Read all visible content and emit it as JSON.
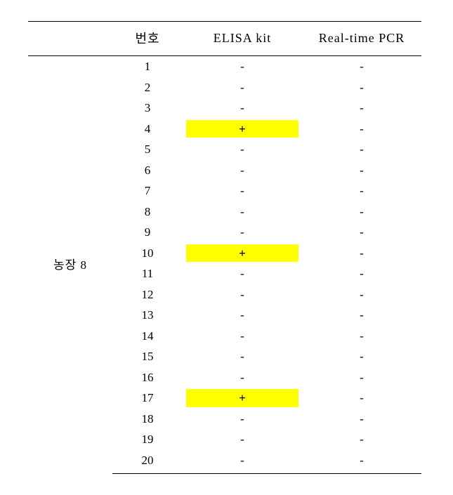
{
  "table": {
    "background_color": "#ffffff",
    "highlight_color": "#ffff00",
    "border_color": "#000000",
    "font_family": "Times New Roman / Malgun Gothic",
    "header_fontsize": 18,
    "cell_fontsize": 17,
    "columns": [
      "",
      "번호",
      "ELISA kit",
      "Real-time PCR"
    ],
    "row_label": "농장 8",
    "rows": [
      {
        "num": "1",
        "elisa": "-",
        "pcr": "-",
        "hl": false
      },
      {
        "num": "2",
        "elisa": "-",
        "pcr": "-",
        "hl": false
      },
      {
        "num": "3",
        "elisa": "-",
        "pcr": "-",
        "hl": false
      },
      {
        "num": "4",
        "elisa": "+",
        "pcr": "-",
        "hl": true
      },
      {
        "num": "5",
        "elisa": "-",
        "pcr": "-",
        "hl": false
      },
      {
        "num": "6",
        "elisa": "-",
        "pcr": "-",
        "hl": false
      },
      {
        "num": "7",
        "elisa": "-",
        "pcr": "-",
        "hl": false
      },
      {
        "num": "8",
        "elisa": "-",
        "pcr": "-",
        "hl": false
      },
      {
        "num": "9",
        "elisa": "-",
        "pcr": "-",
        "hl": false
      },
      {
        "num": "10",
        "elisa": "+",
        "pcr": "-",
        "hl": true
      },
      {
        "num": "11",
        "elisa": "-",
        "pcr": "-",
        "hl": false
      },
      {
        "num": "12",
        "elisa": "-",
        "pcr": "-",
        "hl": false
      },
      {
        "num": "13",
        "elisa": "-",
        "pcr": "-",
        "hl": false
      },
      {
        "num": "14",
        "elisa": "-",
        "pcr": "-",
        "hl": false
      },
      {
        "num": "15",
        "elisa": "-",
        "pcr": "-",
        "hl": false
      },
      {
        "num": "16",
        "elisa": "-",
        "pcr": "-",
        "hl": false
      },
      {
        "num": "17",
        "elisa": "+",
        "pcr": "-",
        "hl": true
      },
      {
        "num": "18",
        "elisa": "-",
        "pcr": "-",
        "hl": false
      },
      {
        "num": "19",
        "elisa": "-",
        "pcr": "-",
        "hl": false
      },
      {
        "num": "20",
        "elisa": "-",
        "pcr": "-",
        "hl": false
      }
    ]
  }
}
